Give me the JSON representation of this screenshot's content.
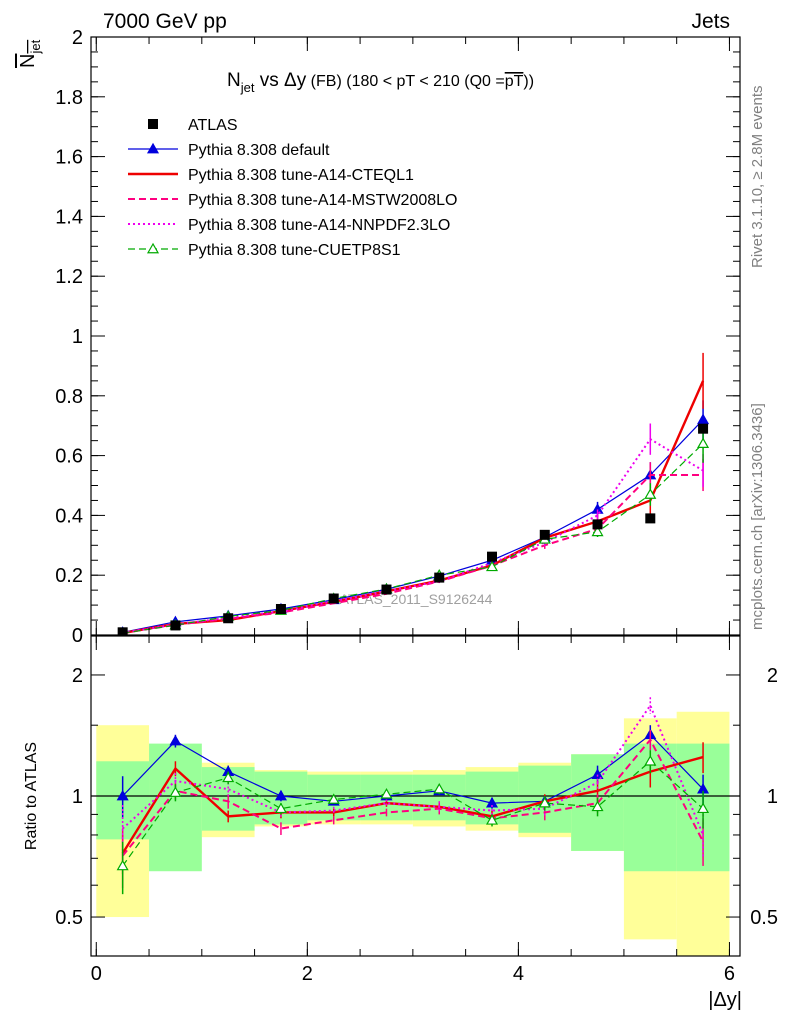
{
  "header": {
    "left": "7000 GeV pp",
    "right": "Jets"
  },
  "plot_title": {
    "main": "N",
    "sub": "jet",
    "vs": " vs ",
    "delta": "Δ",
    "y": "y",
    "fb": " (FB) ",
    "range": "(180 < pT < 210 (Q0 =",
    "pt": "pT",
    "close": "))"
  },
  "ylabel_upper": {
    "main": "N",
    "sub": "jet"
  },
  "ylabel_lower": "Ratio to ATLAS",
  "xlabel": "|Δy|",
  "side_texts": {
    "rivet": "Rivet 3.1.10, ≥ 2.8M events",
    "mcplots": "mcplots.cern.ch [arXiv:1306.3436]"
  },
  "watermark": "ATLAS_2011_S9126244",
  "chart_data": {
    "type": "line",
    "x": [
      0.25,
      0.75,
      1.25,
      1.75,
      2.25,
      2.75,
      3.25,
      3.75,
      4.25,
      4.75,
      5.25,
      5.75
    ],
    "bin_edges": [
      0,
      0.5,
      1,
      1.5,
      2,
      2.5,
      3,
      3.5,
      4,
      4.5,
      5,
      5.5,
      6
    ],
    "upper": {
      "ylim": [
        0,
        2
      ],
      "yticks": [
        0,
        0.2,
        0.4,
        0.6,
        0.8,
        1,
        1.2,
        1.4,
        1.6,
        1.8,
        2
      ],
      "ytick_labels": [
        "0",
        "0.2",
        "0.4",
        "0.6",
        "0.8",
        "1",
        "1.2",
        "1.4",
        "1.6",
        "1.8",
        "2"
      ]
    },
    "lower": {
      "ylim": [
        0.4,
        2.5
      ],
      "log": true,
      "yticks": [
        0.5,
        1,
        2
      ],
      "ytick_labels": [
        "0.5",
        "1",
        "2"
      ],
      "reference": 1
    },
    "xlim": [
      -0.05,
      6.1
    ],
    "xticks": [
      0,
      2,
      4,
      6
    ],
    "xtick_labels": [
      "0",
      "2",
      "4",
      "6"
    ],
    "data": {
      "name": "ATLAS",
      "y": [
        0.009,
        0.032,
        0.056,
        0.087,
        0.122,
        0.152,
        0.192,
        0.262,
        0.335,
        0.37,
        0.39,
        0.69
      ],
      "band_inner": [
        1.22,
        1.35,
        1.18,
        1.15,
        1.13,
        1.13,
        1.13,
        1.15,
        1.19,
        1.27,
        1.35,
        1.35
      ],
      "band_outer_lo": [
        0.5,
        0.72,
        0.79,
        0.84,
        0.85,
        0.85,
        0.84,
        0.82,
        0.79,
        0.73,
        0.44,
        0.38
      ]
    },
    "series": [
      {
        "name": "Pythia 8.308 default",
        "color": "#0000dd",
        "style": "solid",
        "width": 1.2,
        "marker": "triangle-filled",
        "y": [
          0.009,
          0.044,
          0.064,
          0.087,
          0.118,
          0.153,
          0.197,
          0.25,
          0.327,
          0.42,
          0.535,
          0.72
        ],
        "ratio": [
          1.0,
          1.37,
          1.15,
          1.0,
          0.97,
          1.0,
          1.03,
          0.96,
          0.97,
          1.13,
          1.42,
          1.04
        ],
        "ratio_err": [
          0.12,
          0.05,
          0.04,
          0.03,
          0.02,
          0.02,
          0.02,
          0.03,
          0.03,
          0.06,
          0.08,
          0.09
        ]
      },
      {
        "name": "Pythia 8.308 tune-A14-CTEQL1",
        "color": "#ee0000",
        "style": "solid",
        "width": 2.4,
        "marker": "none",
        "y": [
          0.0065,
          0.037,
          0.05,
          0.08,
          0.111,
          0.146,
          0.182,
          0.233,
          0.325,
          0.38,
          0.45,
          0.85
        ],
        "ratio": [
          0.72,
          1.17,
          0.89,
          0.91,
          0.91,
          0.96,
          0.94,
          0.89,
          0.97,
          1.03,
          1.15,
          1.25
        ],
        "ratio_err": [
          0.08,
          0.05,
          0.03,
          0.03,
          0.02,
          0.02,
          0.03,
          0.03,
          0.04,
          0.06,
          0.1,
          0.11
        ]
      },
      {
        "name": "Pythia 8.308 tune-A14-MSTW2008LO",
        "color": "#ff0080",
        "style": "dashed",
        "width": 2,
        "marker": "none",
        "y": [
          0.0065,
          0.034,
          0.054,
          0.075,
          0.106,
          0.138,
          0.179,
          0.232,
          0.3,
          0.355,
          0.535,
          0.535
        ],
        "ratio": [
          0.71,
          1.03,
          0.97,
          0.83,
          0.87,
          0.91,
          0.93,
          0.88,
          0.91,
          0.96,
          1.38,
          0.77
        ],
        "ratio_err": [
          0.12,
          0.05,
          0.04,
          0.03,
          0.02,
          0.02,
          0.03,
          0.03,
          0.04,
          0.05,
          0.08,
          0.1
        ]
      },
      {
        "name": "Pythia 8.308 tune-A14-NNPDF2.3LO",
        "color": "#ee00ee",
        "style": "dotted",
        "width": 2,
        "marker": "none",
        "y": [
          0.0075,
          0.035,
          0.058,
          0.079,
          0.113,
          0.146,
          0.18,
          0.241,
          0.31,
          0.4,
          0.655,
          0.55
        ],
        "ratio": [
          0.83,
          1.09,
          1.04,
          0.91,
          0.92,
          0.96,
          0.94,
          0.92,
          0.93,
          1.08,
          1.68,
          0.8
        ],
        "ratio_err": [
          0.12,
          0.05,
          0.04,
          0.03,
          0.02,
          0.02,
          0.03,
          0.03,
          0.04,
          0.05,
          0.08,
          0.1
        ]
      },
      {
        "name": "Pythia 8.308 tune-CUETP8S1",
        "color": "#00aa00",
        "style": "dashed",
        "width": 1.2,
        "marker": "triangle-open",
        "y": [
          0.006,
          0.033,
          0.062,
          0.082,
          0.122,
          0.154,
          0.2,
          0.228,
          0.32,
          0.345,
          0.47,
          0.64
        ],
        "ratio": [
          0.67,
          1.02,
          1.11,
          0.93,
          0.98,
          1.01,
          1.04,
          0.87,
          0.96,
          0.94,
          1.22,
          0.93
        ],
        "ratio_err": [
          0.1,
          0.05,
          0.04,
          0.03,
          0.02,
          0.02,
          0.03,
          0.03,
          0.04,
          0.05,
          0.08,
          0.1
        ]
      }
    ]
  },
  "legend": {
    "placement": "top-left",
    "entries": [
      {
        "label": "ATLAS"
      },
      {
        "label": "Pythia 8.308 default"
      },
      {
        "label": "Pythia 8.308 tune-A14-CTEQL1"
      },
      {
        "label": "Pythia 8.308 tune-A14-MSTW2008LO"
      },
      {
        "label": "Pythia 8.308 tune-A14-NNPDF2.3LO"
      },
      {
        "label": "Pythia 8.308 tune-CUETP8S1"
      }
    ]
  }
}
